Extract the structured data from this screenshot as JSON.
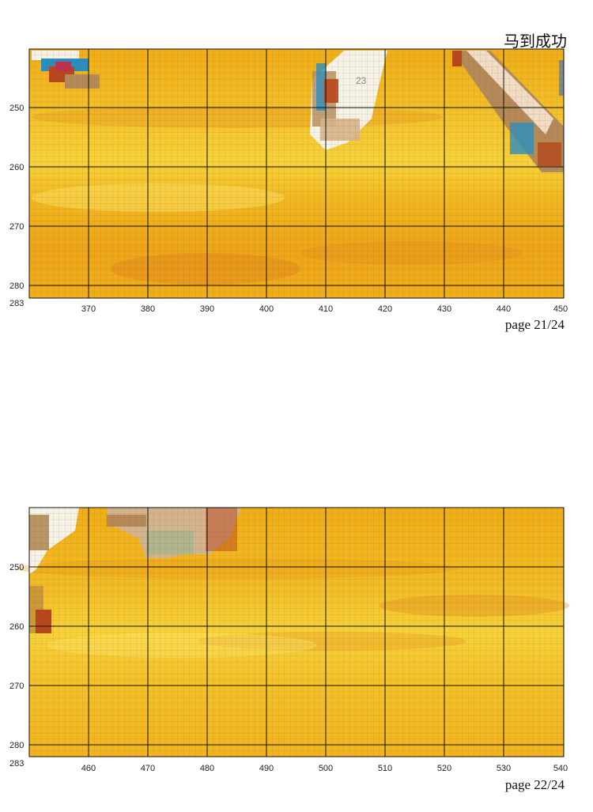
{
  "document": {
    "title": "马到成功"
  },
  "pages": [
    {
      "page_label": "page 21/24",
      "x_ticks": [
        "370",
        "380",
        "390",
        "400",
        "410",
        "420",
        "430",
        "440",
        "450"
      ],
      "y_ticks": [
        "250",
        "260",
        "270",
        "280",
        "283"
      ],
      "symbol_label": "23"
    },
    {
      "page_label": "page 22/24",
      "x_ticks": [
        "460",
        "470",
        "480",
        "490",
        "500",
        "510",
        "520",
        "530",
        "540"
      ],
      "y_ticks": [
        "250",
        "260",
        "270",
        "280",
        "283"
      ]
    }
  ],
  "colors": {
    "background_gold": "#f2b21a",
    "light_gold": "#f8d43a",
    "deep_orange": "#e48f1a",
    "thread_white": "#f6f2e6",
    "thread_blue": "#2a8fc0",
    "thread_rust": "#b8461c",
    "thread_tan": "#b58a58",
    "grid_major": "#000000"
  }
}
